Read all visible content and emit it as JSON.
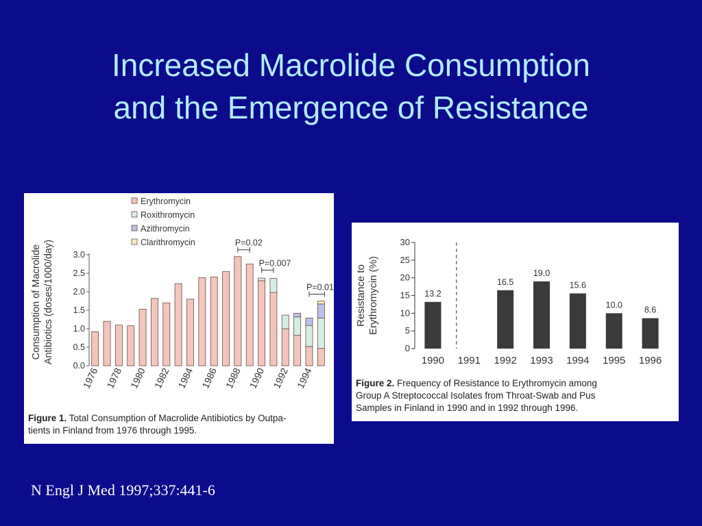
{
  "slide": {
    "title_line1": "Increased Macrolide Consumption",
    "title_line2": "and the Emergence of Resistance",
    "citation": "N Engl J Med 1997;337:441-6",
    "background_color": "#0b0b8c",
    "title_color": "#b3ecff"
  },
  "chart_data": [
    {
      "type": "bar",
      "stacked": true,
      "ylabel": "Consumption of Macrolide Antibiotics (doses/1000/day)",
      "ylim": [
        0,
        3.0
      ],
      "yticks": [
        "0.0",
        "0.5",
        "1.0",
        "1.5",
        "2.0",
        "2.5",
        "3.0"
      ],
      "ytick_values": [
        0,
        0.5,
        1.0,
        1.5,
        2.0,
        2.5,
        3.0
      ],
      "categories": [
        "1976",
        "1977",
        "1978",
        "1979",
        "1980",
        "1981",
        "1982",
        "1983",
        "1984",
        "1985",
        "1986",
        "1987",
        "1988",
        "1989",
        "1990",
        "1991",
        "1992",
        "1993",
        "1994",
        "1995"
      ],
      "xtick_labels": [
        "1976",
        "1978",
        "1980",
        "1982",
        "1984",
        "1986",
        "1988",
        "1990",
        "1992",
        "1994"
      ],
      "legend": [
        "Erythromycin",
        "Roxithromycin",
        "Azithromycin",
        "Clarithromycin"
      ],
      "legend_position": "top-left",
      "series": [
        {
          "name": "Erythromycin",
          "color": "#f2c6bc",
          "values": [
            0.92,
            1.2,
            1.1,
            1.08,
            1.53,
            1.82,
            1.7,
            2.22,
            1.8,
            2.38,
            2.4,
            2.55,
            2.95,
            2.75,
            2.3,
            1.98,
            1.0,
            0.82,
            0.52,
            0.47
          ]
        },
        {
          "name": "Roxithromycin",
          "color": "#d4eee2",
          "values": [
            0,
            0,
            0,
            0,
            0,
            0,
            0,
            0,
            0,
            0,
            0,
            0,
            0,
            0,
            0.07,
            0.38,
            0.37,
            0.5,
            0.57,
            0.82
          ]
        },
        {
          "name": "Azithromycin",
          "color": "#b9c2e8",
          "values": [
            0,
            0,
            0,
            0,
            0,
            0,
            0,
            0,
            0,
            0,
            0,
            0,
            0,
            0,
            0,
            0,
            0,
            0.1,
            0.2,
            0.38
          ]
        },
        {
          "name": "Clarithromycin",
          "color": "#f5edc2",
          "values": [
            0,
            0,
            0,
            0,
            0,
            0,
            0,
            0,
            0,
            0,
            0,
            0,
            0,
            0,
            0,
            0,
            0,
            0,
            0,
            0.08
          ]
        }
      ],
      "annotations": [
        {
          "text": "P=0.02",
          "from": "1988",
          "to": "1989"
        },
        {
          "text": "P=0.007",
          "from": "1990",
          "to": "1991"
        },
        {
          "text": "P=0.01",
          "from": "1994",
          "to": "1995"
        }
      ],
      "caption_label": "Figure 1.",
      "caption_text_line1": "Total Consumption of Macrolide Antibiotics by Outpa-",
      "caption_text_line2": "tients in Finland from 1976 through 1995."
    },
    {
      "type": "bar",
      "ylabel_line1": "Resistance to",
      "ylabel_line2": "Erythromycin (%)",
      "ylim": [
        0,
        30
      ],
      "yticks": [
        "0",
        "5",
        "10",
        "15",
        "20",
        "25",
        "30"
      ],
      "ytick_values": [
        0,
        5,
        10,
        15,
        20,
        25,
        30
      ],
      "categories": [
        "1990",
        "1991",
        "1992",
        "1993",
        "1994",
        "1995",
        "1996"
      ],
      "values": [
        13.2,
        null,
        16.5,
        19.0,
        15.6,
        10.0,
        8.6
      ],
      "data_labels": [
        "13.2",
        "",
        "16.5",
        "19.0",
        "15.6",
        "10.0",
        "8.6"
      ],
      "bar_color": "#3a3a3a",
      "divider_after": "1990",
      "caption_label": "Figure 2.",
      "caption_text_line1": "Frequency of Resistance to Erythromycin among",
      "caption_text_line2": "Group A Streptococcal Isolates from Throat-Swab and Pus",
      "caption_text_line3": "Samples in Finland in 1990 and in 1992 through 1996."
    }
  ]
}
